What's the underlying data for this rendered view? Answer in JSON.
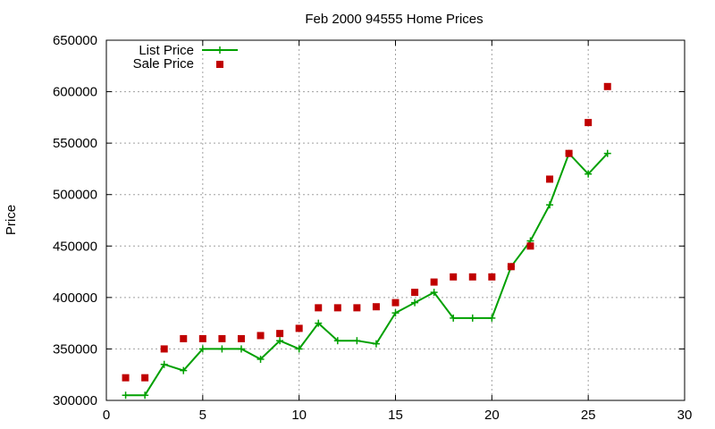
{
  "chart_data": {
    "type": "line",
    "title": "Feb 2000 94555 Home Prices",
    "xlabel": "",
    "ylabel": "Price",
    "xlim": [
      0,
      30
    ],
    "ylim": [
      300000,
      650000
    ],
    "xticks": [
      0,
      5,
      10,
      15,
      20,
      25,
      30
    ],
    "yticks": [
      300000,
      350000,
      400000,
      450000,
      500000,
      550000,
      600000,
      650000
    ],
    "x_tick_labels": [
      "0",
      "5",
      "10",
      "15",
      "20",
      "25",
      "30"
    ],
    "y_tick_labels": [
      "300000",
      "350000",
      "400000",
      "450000",
      "500000",
      "550000",
      "600000",
      "650000"
    ],
    "grid": true,
    "legend_position": "top-left",
    "series": [
      {
        "name": "List Price",
        "style": "line-with-plus-markers",
        "color": "#00a000",
        "x": [
          1,
          2,
          3,
          4,
          5,
          6,
          7,
          8,
          9,
          10,
          11,
          12,
          13,
          14,
          15,
          16,
          17,
          18,
          19,
          20,
          21,
          22,
          23,
          24,
          25,
          26
        ],
        "values": [
          305000,
          305000,
          335000,
          329000,
          350000,
          350000,
          350000,
          340000,
          358000,
          350000,
          375000,
          358000,
          358000,
          355000,
          385000,
          395000,
          405000,
          380000,
          380000,
          380000,
          430000,
          455000,
          490000,
          540000,
          520000,
          540000
        ]
      },
      {
        "name": "Sale Price",
        "style": "square-markers",
        "color": "#c00000",
        "x": [
          1,
          2,
          3,
          4,
          5,
          6,
          7,
          8,
          9,
          10,
          11,
          12,
          13,
          14,
          15,
          16,
          17,
          18,
          19,
          20,
          21,
          22,
          23,
          24,
          25,
          26
        ],
        "values": [
          322000,
          322000,
          350000,
          360000,
          360000,
          360000,
          360000,
          363000,
          365000,
          370000,
          390000,
          390000,
          390000,
          391000,
          395000,
          405000,
          415000,
          420000,
          420000,
          420000,
          430000,
          450000,
          515000,
          540000,
          570000,
          605000
        ]
      }
    ]
  }
}
